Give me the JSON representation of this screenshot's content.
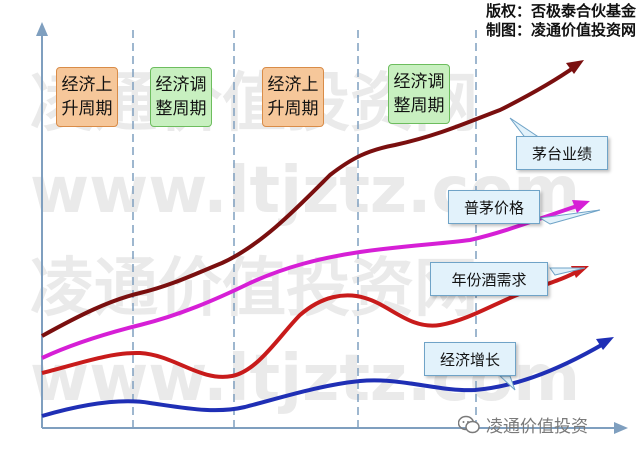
{
  "credits": {
    "line1": "版权：否极泰合伙基金",
    "line2": "制图：凌通价值投资网"
  },
  "phases": [
    {
      "label_line1": "经济上",
      "label_line2": "升周期",
      "kind": "up"
    },
    {
      "label_line1": "经济调",
      "label_line2": "整周期",
      "kind": "adj"
    },
    {
      "label_line1": "经济上",
      "label_line2": "升周期",
      "kind": "up"
    },
    {
      "label_line1": "经济调",
      "label_line2": "整周期",
      "kind": "adj"
    }
  ],
  "curves": [
    {
      "label": "茅台业绩",
      "color": "#7a0f0f"
    },
    {
      "label": "普茅价格",
      "color": "#d61fd6"
    },
    {
      "label": "年份酒需求",
      "color": "#c81b1b"
    },
    {
      "label": "经济增长",
      "color": "#1f2fb5"
    }
  ],
  "watermark": {
    "line_cn": "凌通价值投资网",
    "line_url": "www.ltjztz.com"
  },
  "footer": {
    "brand": "凌通价值投资"
  },
  "colors": {
    "axis": "#7f9fbf",
    "divider": "#7f9fbf"
  }
}
